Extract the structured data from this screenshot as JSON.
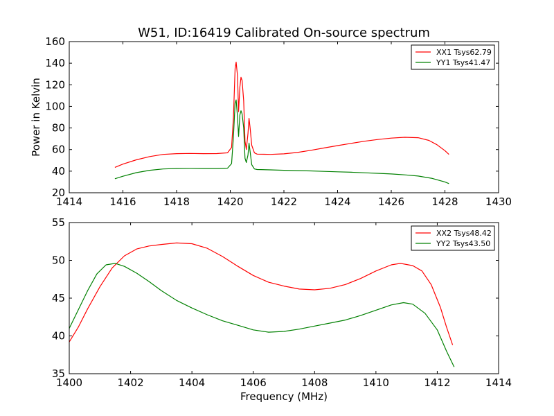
{
  "title": "W51, ID:16419 Calibrated On-source spectrum",
  "chart_data": [
    {
      "type": "line",
      "title": "W51, ID:16419 Calibrated On-source spectrum",
      "xlabel": "",
      "ylabel": "Power in Kelvin",
      "xlim": [
        1414,
        1430
      ],
      "ylim": [
        20,
        160
      ],
      "xticks": [
        "1414",
        "1416",
        "1418",
        "1420",
        "1422",
        "1424",
        "1426",
        "1428",
        "1430"
      ],
      "yticks": [
        "20",
        "40",
        "60",
        "80",
        "100",
        "120",
        "140",
        "160"
      ],
      "grid": false,
      "legend_position": "top-right",
      "series": [
        {
          "name": "XX1 Tsys62.79",
          "color": "#ff0000",
          "points": [
            [
              1415.7,
              43.5
            ],
            [
              1416.0,
              46.5
            ],
            [
              1416.5,
              50.5
            ],
            [
              1417.0,
              53.5
            ],
            [
              1417.5,
              55.5
            ],
            [
              1418.0,
              56.2
            ],
            [
              1418.5,
              56.4
            ],
            [
              1419.0,
              56.2
            ],
            [
              1419.5,
              56.3
            ],
            [
              1419.9,
              57.0
            ],
            [
              1420.05,
              62
            ],
            [
              1420.12,
              90
            ],
            [
              1420.18,
              135
            ],
            [
              1420.22,
              141
            ],
            [
              1420.27,
              128
            ],
            [
              1420.31,
              95
            ],
            [
              1420.36,
              118
            ],
            [
              1420.4,
              127
            ],
            [
              1420.44,
              124
            ],
            [
              1420.5,
              105
            ],
            [
              1420.55,
              68
            ],
            [
              1420.6,
              60
            ],
            [
              1420.66,
              75
            ],
            [
              1420.7,
              89
            ],
            [
              1420.74,
              80
            ],
            [
              1420.8,
              64
            ],
            [
              1420.9,
              57
            ],
            [
              1421.0,
              55.8
            ],
            [
              1421.5,
              55.5
            ],
            [
              1422.0,
              56.0
            ],
            [
              1422.5,
              57.3
            ],
            [
              1423.0,
              59.3
            ],
            [
              1423.5,
              61.5
            ],
            [
              1424.0,
              63.7
            ],
            [
              1424.5,
              65.7
            ],
            [
              1425.0,
              67.7
            ],
            [
              1425.5,
              69.3
            ],
            [
              1426.0,
              70.6
            ],
            [
              1426.5,
              71.4
            ],
            [
              1427.0,
              71.0
            ],
            [
              1427.4,
              68.5
            ],
            [
              1427.7,
              64.5
            ],
            [
              1428.0,
              59.0
            ],
            [
              1428.15,
              55.5
            ]
          ]
        },
        {
          "name": "YY1 Tsys41.47",
          "color": "#008000",
          "points": [
            [
              1415.7,
              33.0
            ],
            [
              1416.0,
              35.3
            ],
            [
              1416.5,
              38.6
            ],
            [
              1417.0,
              40.8
            ],
            [
              1417.5,
              42.0
            ],
            [
              1418.0,
              42.5
            ],
            [
              1418.5,
              42.6
            ],
            [
              1419.0,
              42.5
            ],
            [
              1419.5,
              42.5
            ],
            [
              1419.9,
              42.8
            ],
            [
              1420.05,
              47
            ],
            [
              1420.12,
              72
            ],
            [
              1420.18,
              103
            ],
            [
              1420.22,
              106
            ],
            [
              1420.27,
              90
            ],
            [
              1420.31,
              72
            ],
            [
              1420.36,
              92
            ],
            [
              1420.4,
              96
            ],
            [
              1420.44,
              93
            ],
            [
              1420.5,
              80
            ],
            [
              1420.55,
              52
            ],
            [
              1420.6,
              48
            ],
            [
              1420.66,
              55
            ],
            [
              1420.7,
              66
            ],
            [
              1420.74,
              58
            ],
            [
              1420.8,
              46
            ],
            [
              1420.9,
              42
            ],
            [
              1421.0,
              41.5
            ],
            [
              1421.5,
              41.2
            ],
            [
              1422.0,
              40.8
            ],
            [
              1422.5,
              40.5
            ],
            [
              1423.0,
              40.2
            ],
            [
              1423.5,
              39.8
            ],
            [
              1424.0,
              39.4
            ],
            [
              1424.5,
              39.0
            ],
            [
              1425.0,
              38.5
            ],
            [
              1425.5,
              38.0
            ],
            [
              1426.0,
              37.4
            ],
            [
              1426.5,
              36.6
            ],
            [
              1427.0,
              35.5
            ],
            [
              1427.5,
              33.4
            ],
            [
              1428.0,
              30.0
            ],
            [
              1428.15,
              28.5
            ]
          ]
        }
      ]
    },
    {
      "type": "line",
      "title": "",
      "xlabel": "Frequency (MHz)",
      "ylabel": "",
      "xlim": [
        1400,
        1414
      ],
      "ylim": [
        35,
        55
      ],
      "xticks": [
        "1400",
        "1402",
        "1404",
        "1406",
        "1408",
        "1410",
        "1412",
        "1414"
      ],
      "yticks": [
        "35",
        "40",
        "45",
        "50",
        "55"
      ],
      "grid": false,
      "legend_position": "top-right",
      "series": [
        {
          "name": "XX2 Tsys48.42",
          "color": "#ff0000",
          "points": [
            [
              1400.0,
              39.2
            ],
            [
              1400.3,
              41.2
            ],
            [
              1400.6,
              43.6
            ],
            [
              1401.0,
              46.5
            ],
            [
              1401.4,
              49.0
            ],
            [
              1401.8,
              50.6
            ],
            [
              1402.2,
              51.5
            ],
            [
              1402.6,
              51.9
            ],
            [
              1403.0,
              52.1
            ],
            [
              1403.5,
              52.3
            ],
            [
              1404.0,
              52.2
            ],
            [
              1404.5,
              51.6
            ],
            [
              1405.0,
              50.5
            ],
            [
              1405.5,
              49.2
            ],
            [
              1406.0,
              48.0
            ],
            [
              1406.5,
              47.1
            ],
            [
              1407.0,
              46.6
            ],
            [
              1407.5,
              46.2
            ],
            [
              1408.0,
              46.1
            ],
            [
              1408.5,
              46.3
            ],
            [
              1409.0,
              46.8
            ],
            [
              1409.5,
              47.6
            ],
            [
              1410.0,
              48.6
            ],
            [
              1410.5,
              49.4
            ],
            [
              1410.8,
              49.6
            ],
            [
              1411.2,
              49.3
            ],
            [
              1411.5,
              48.6
            ],
            [
              1411.8,
              46.8
            ],
            [
              1412.1,
              43.8
            ],
            [
              1412.3,
              41.2
            ],
            [
              1412.5,
              38.8
            ]
          ]
        },
        {
          "name": "YY2 Tsys43.50",
          "color": "#008000",
          "points": [
            [
              1400.0,
              41.0
            ],
            [
              1400.3,
              43.5
            ],
            [
              1400.6,
              46.0
            ],
            [
              1400.9,
              48.2
            ],
            [
              1401.2,
              49.4
            ],
            [
              1401.5,
              49.6
            ],
            [
              1401.8,
              49.2
            ],
            [
              1402.2,
              48.3
            ],
            [
              1402.6,
              47.2
            ],
            [
              1403.0,
              46.0
            ],
            [
              1403.5,
              44.7
            ],
            [
              1404.0,
              43.7
            ],
            [
              1404.5,
              42.8
            ],
            [
              1405.0,
              42.0
            ],
            [
              1405.5,
              41.4
            ],
            [
              1406.0,
              40.8
            ],
            [
              1406.5,
              40.5
            ],
            [
              1407.0,
              40.6
            ],
            [
              1407.5,
              40.9
            ],
            [
              1408.0,
              41.3
            ],
            [
              1408.5,
              41.7
            ],
            [
              1409.0,
              42.1
            ],
            [
              1409.5,
              42.7
            ],
            [
              1410.0,
              43.4
            ],
            [
              1410.5,
              44.1
            ],
            [
              1410.9,
              44.4
            ],
            [
              1411.2,
              44.2
            ],
            [
              1411.6,
              43.0
            ],
            [
              1412.0,
              40.8
            ],
            [
              1412.3,
              38.0
            ],
            [
              1412.55,
              35.9
            ]
          ]
        }
      ]
    }
  ]
}
